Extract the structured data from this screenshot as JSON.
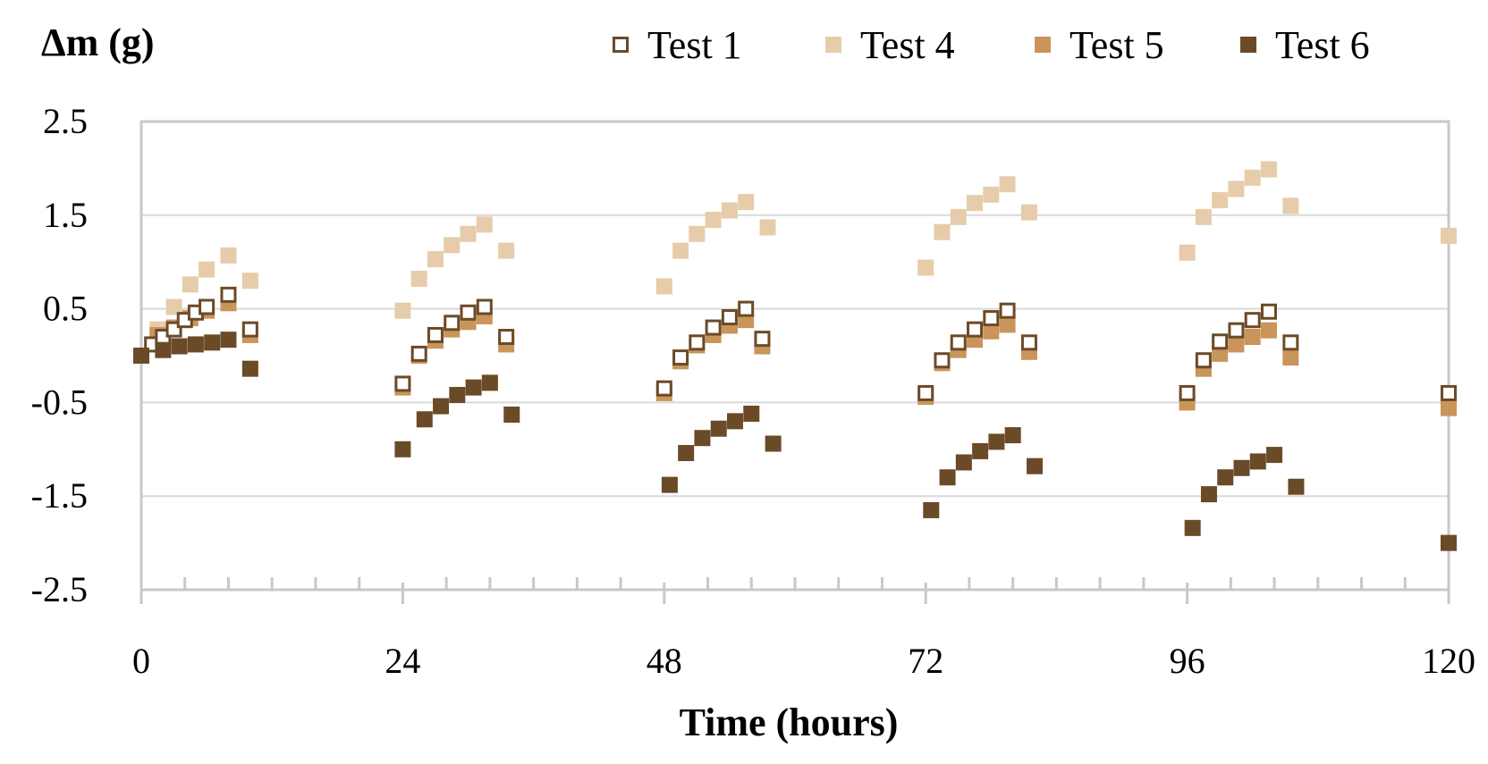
{
  "chart_data": {
    "type": "scatter",
    "title": "",
    "xlabel": "Time (hours)",
    "ylabel": "Δm (g)",
    "xlim": [
      0,
      120
    ],
    "ylim": [
      -2.5,
      2.5
    ],
    "x_ticks": [
      0,
      24,
      48,
      72,
      96,
      120
    ],
    "x_tick_labels": [
      "0",
      "24",
      "48",
      "72",
      "96",
      "120"
    ],
    "y_ticks": [
      2.5,
      1.5,
      0.5,
      -0.5,
      -1.5,
      -2.5
    ],
    "y_tick_labels": [
      "2.5",
      "1.5",
      "0.5",
      "-0.5",
      "-1.5",
      "-2.5"
    ],
    "grid": "horizontal",
    "legend_position": "top-right",
    "series": [
      {
        "name": "Test 1",
        "marker": "hollow-square",
        "color": "#6b4a28",
        "points": [
          [
            0,
            0.0
          ],
          [
            1,
            0.12
          ],
          [
            2,
            0.2
          ],
          [
            3,
            0.28
          ],
          [
            4,
            0.38
          ],
          [
            5,
            0.46
          ],
          [
            6,
            0.52
          ],
          [
            8,
            0.65
          ],
          [
            10,
            0.28
          ],
          [
            24,
            -0.3
          ],
          [
            25.5,
            0.02
          ],
          [
            27,
            0.22
          ],
          [
            28.5,
            0.35
          ],
          [
            30,
            0.46
          ],
          [
            31.5,
            0.52
          ],
          [
            33.5,
            0.2
          ],
          [
            48,
            -0.35
          ],
          [
            49.5,
            -0.02
          ],
          [
            51,
            0.14
          ],
          [
            52.5,
            0.3
          ],
          [
            54,
            0.41
          ],
          [
            55.5,
            0.5
          ],
          [
            57,
            0.18
          ],
          [
            72,
            -0.4
          ],
          [
            73.5,
            -0.05
          ],
          [
            75,
            0.14
          ],
          [
            76.5,
            0.28
          ],
          [
            78,
            0.4
          ],
          [
            79.5,
            0.48
          ],
          [
            81.5,
            0.14
          ],
          [
            96,
            -0.4
          ],
          [
            97.5,
            -0.05
          ],
          [
            99,
            0.15
          ],
          [
            100.5,
            0.27
          ],
          [
            102,
            0.38
          ],
          [
            103.5,
            0.47
          ],
          [
            105.5,
            0.14
          ],
          [
            120,
            -0.4
          ]
        ]
      },
      {
        "name": "Test 4",
        "marker": "filled-square",
        "color": "#e6ccaa",
        "points": [
          [
            1.5,
            0.28
          ],
          [
            3,
            0.52
          ],
          [
            4.5,
            0.76
          ],
          [
            6,
            0.92
          ],
          [
            8,
            1.07
          ],
          [
            10,
            0.8
          ],
          [
            24,
            0.48
          ],
          [
            25.5,
            0.82
          ],
          [
            27,
            1.03
          ],
          [
            28.5,
            1.18
          ],
          [
            30,
            1.3
          ],
          [
            31.5,
            1.4
          ],
          [
            33.5,
            1.12
          ],
          [
            48,
            0.74
          ],
          [
            49.5,
            1.12
          ],
          [
            51,
            1.3
          ],
          [
            52.5,
            1.45
          ],
          [
            54,
            1.55
          ],
          [
            55.5,
            1.64
          ],
          [
            57.5,
            1.37
          ],
          [
            72,
            0.94
          ],
          [
            73.5,
            1.32
          ],
          [
            75,
            1.48
          ],
          [
            76.5,
            1.63
          ],
          [
            78,
            1.72
          ],
          [
            79.5,
            1.83
          ],
          [
            81.5,
            1.53
          ],
          [
            96,
            1.1
          ],
          [
            97.5,
            1.48
          ],
          [
            99,
            1.66
          ],
          [
            100.5,
            1.78
          ],
          [
            102,
            1.9
          ],
          [
            103.5,
            1.99
          ],
          [
            105.5,
            1.6
          ],
          [
            120,
            1.28
          ]
        ]
      },
      {
        "name": "Test 5",
        "marker": "filled-square",
        "color": "#c9955a",
        "points": [
          [
            1.5,
            0.22
          ],
          [
            3,
            0.3
          ],
          [
            4.5,
            0.4
          ],
          [
            6,
            0.48
          ],
          [
            8,
            0.56
          ],
          [
            10,
            0.22
          ],
          [
            24,
            -0.34
          ],
          [
            25.5,
            0.0
          ],
          [
            27,
            0.16
          ],
          [
            28.5,
            0.28
          ],
          [
            30,
            0.36
          ],
          [
            31.5,
            0.42
          ],
          [
            33.5,
            0.12
          ],
          [
            48,
            -0.4
          ],
          [
            49.5,
            -0.06
          ],
          [
            51,
            0.11
          ],
          [
            52.5,
            0.22
          ],
          [
            54,
            0.32
          ],
          [
            55.5,
            0.38
          ],
          [
            57,
            0.1
          ],
          [
            72,
            -0.44
          ],
          [
            73.5,
            -0.08
          ],
          [
            75,
            0.06
          ],
          [
            76.5,
            0.17
          ],
          [
            78,
            0.26
          ],
          [
            79.5,
            0.33
          ],
          [
            81.5,
            0.04
          ],
          [
            96,
            -0.5
          ],
          [
            97.5,
            -0.14
          ],
          [
            99,
            0.02
          ],
          [
            100.5,
            0.12
          ],
          [
            102,
            0.2
          ],
          [
            103.5,
            0.27
          ],
          [
            105.5,
            -0.02
          ],
          [
            120,
            -0.56
          ]
        ]
      },
      {
        "name": "Test 6",
        "marker": "filled-square",
        "color": "#6b4a28",
        "points": [
          [
            0,
            0.0
          ],
          [
            2,
            0.06
          ],
          [
            3.5,
            0.1
          ],
          [
            5,
            0.12
          ],
          [
            6.5,
            0.14
          ],
          [
            8,
            0.17
          ],
          [
            10,
            -0.14
          ],
          [
            24,
            -1.0
          ],
          [
            26,
            -0.68
          ],
          [
            27.5,
            -0.54
          ],
          [
            29,
            -0.42
          ],
          [
            30.5,
            -0.34
          ],
          [
            32,
            -0.29
          ],
          [
            34,
            -0.63
          ],
          [
            48.5,
            -1.38
          ],
          [
            50,
            -1.04
          ],
          [
            51.5,
            -0.88
          ],
          [
            53,
            -0.78
          ],
          [
            54.5,
            -0.7
          ],
          [
            56,
            -0.62
          ],
          [
            58,
            -0.94
          ],
          [
            72.5,
            -1.65
          ],
          [
            74,
            -1.3
          ],
          [
            75.5,
            -1.14
          ],
          [
            77,
            -1.02
          ],
          [
            78.5,
            -0.92
          ],
          [
            80,
            -0.85
          ],
          [
            82,
            -1.18
          ],
          [
            96.5,
            -1.84
          ],
          [
            98,
            -1.48
          ],
          [
            99.5,
            -1.3
          ],
          [
            101,
            -1.2
          ],
          [
            102.5,
            -1.13
          ],
          [
            104,
            -1.06
          ],
          [
            106,
            -1.4
          ],
          [
            120,
            -2.0
          ]
        ]
      }
    ]
  }
}
